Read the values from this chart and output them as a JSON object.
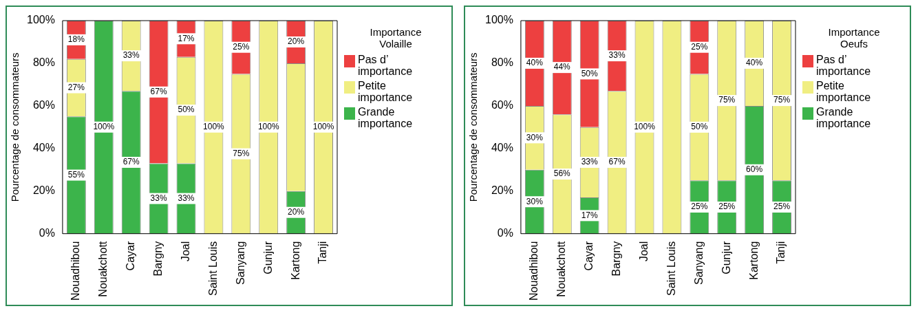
{
  "chart_data": [
    {
      "type": "bar",
      "stacked": true,
      "legend_title": "Importance\nVolaille",
      "ylabel": "Pourcentage de consommateurs",
      "categories": [
        "Nouadhibou",
        "Nouakchott",
        "Cayar",
        "Bargny",
        "Joal",
        "Saint Louis",
        "Sanyang",
        "Gunjur",
        "Kartong",
        "Tanji"
      ],
      "ylim": [
        0,
        100
      ],
      "yticks": [
        {
          "value": 0,
          "label": "0%"
        },
        {
          "value": 20,
          "label": "20%"
        },
        {
          "value": 40,
          "label": "40%"
        },
        {
          "value": 60,
          "label": "60%"
        },
        {
          "value": 80,
          "label": "80%"
        },
        {
          "value": 100,
          "label": "100%"
        }
      ],
      "grid": false,
      "legend": "right",
      "series": [
        {
          "name": "Grande importance",
          "color": "#3cb44b",
          "values": [
            55,
            100,
            67,
            33,
            33,
            null,
            null,
            null,
            20,
            null
          ],
          "value_labels": [
            "55%",
            "100%",
            "67%",
            "33%",
            "33%",
            null,
            null,
            null,
            "20%",
            null
          ]
        },
        {
          "name": "Petite importance",
          "color": "#f0ee82",
          "values": [
            27,
            null,
            33,
            null,
            50,
            100,
            75,
            100,
            60,
            100
          ],
          "value_labels": [
            "27%",
            null,
            "33%",
            null,
            "50%",
            "100%",
            "75%",
            "100%",
            null,
            "100%"
          ]
        },
        {
          "name": "Pas d’ importance",
          "color": "#ed4040",
          "values": [
            18,
            null,
            null,
            67,
            17,
            null,
            25,
            null,
            20,
            null
          ],
          "value_labels": [
            "18%",
            null,
            null,
            "67%",
            "17%",
            null,
            "25%",
            null,
            "20%",
            null
          ]
        }
      ]
    },
    {
      "type": "bar",
      "stacked": true,
      "legend_title": "Importance\nOeufs",
      "ylabel": "Pourcentage de consommateurs",
      "categories": [
        "Nouadhibou",
        "Nouakchott",
        "Cayar",
        "Bargny",
        "Joal",
        "Saint Louis",
        "Sanyang",
        "Gunjur",
        "Kartong",
        "Tanji"
      ],
      "ylim": [
        0,
        100
      ],
      "yticks": [
        {
          "value": 0,
          "label": "0%"
        },
        {
          "value": 20,
          "label": "20%"
        },
        {
          "value": 40,
          "label": "40%"
        },
        {
          "value": 60,
          "label": "60%"
        },
        {
          "value": 80,
          "label": "80%"
        },
        {
          "value": 100,
          "label": "100%"
        }
      ],
      "grid": false,
      "legend": "right",
      "series": [
        {
          "name": "Grande importance",
          "color": "#3cb44b",
          "values": [
            30,
            null,
            17,
            null,
            null,
            null,
            25,
            25,
            60,
            25
          ],
          "value_labels": [
            "30%",
            null,
            "17%",
            null,
            null,
            null,
            "25%",
            "25%",
            "60%",
            "25%"
          ]
        },
        {
          "name": "Petite importance",
          "color": "#f0ee82",
          "values": [
            30,
            56,
            33,
            67,
            100,
            100,
            50,
            75,
            40,
            75
          ],
          "value_labels": [
            "30%",
            "56%",
            "33%",
            "67%",
            "100%",
            null,
            "50%",
            "75%",
            "40%",
            "75%"
          ]
        },
        {
          "name": "Pas d’ importance",
          "color": "#ed4040",
          "values": [
            40,
            44,
            50,
            33,
            null,
            null,
            25,
            null,
            null,
            null
          ],
          "value_labels": [
            "40%",
            "44%",
            "50%",
            "33%",
            null,
            null,
            "25%",
            null,
            null,
            null
          ]
        }
      ]
    }
  ]
}
